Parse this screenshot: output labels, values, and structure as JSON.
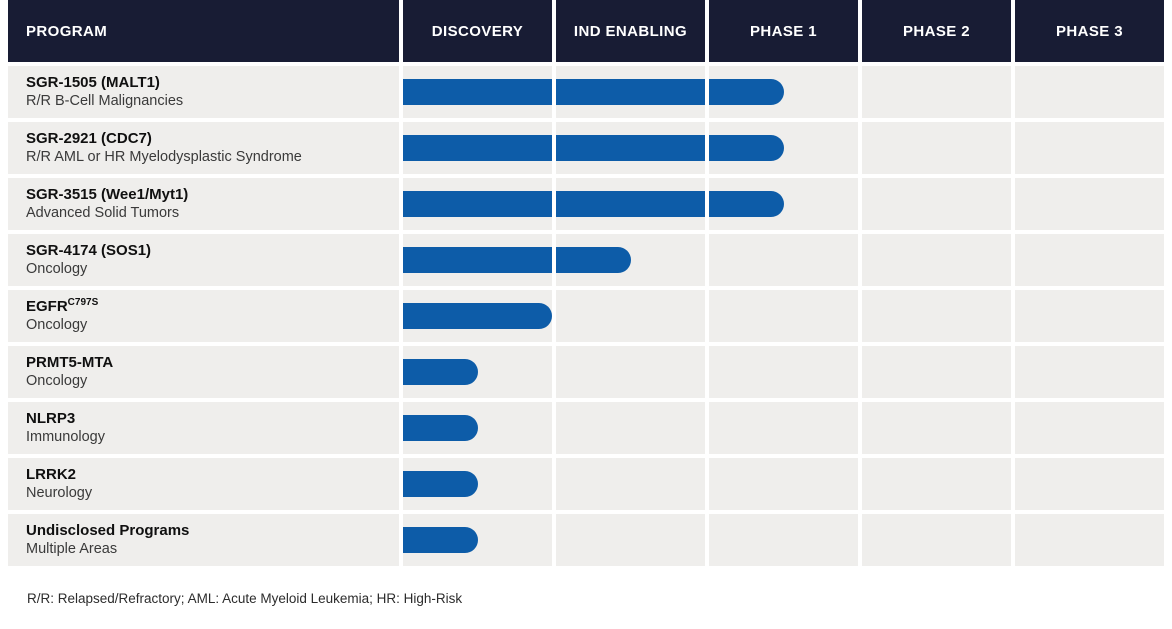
{
  "header": {
    "columns": [
      "PROGRAM",
      "DISCOVERY",
      "IND ENABLING",
      "PHASE 1",
      "PHASE 2",
      "PHASE 3"
    ]
  },
  "rows": [
    {
      "name": "SGR-1505 (MALT1)",
      "sup": "",
      "subtitle": "R/R B-Cell Malignancies",
      "progress": 2.5
    },
    {
      "name": "SGR-2921 (CDC7)",
      "sup": "",
      "subtitle": "R/R AML or HR Myelodysplastic Syndrome",
      "progress": 2.5
    },
    {
      "name": "SGR-3515 (Wee1/Myt1)",
      "sup": "",
      "subtitle": "Advanced Solid Tumors",
      "progress": 2.5
    },
    {
      "name": "SGR-4174 (SOS1)",
      "sup": "",
      "subtitle": "Oncology",
      "progress": 1.5
    },
    {
      "name": "EGFR",
      "sup": "C797S",
      "subtitle": "Oncology",
      "progress": 1.0
    },
    {
      "name": "PRMT5-MTA",
      "sup": "",
      "subtitle": "Oncology",
      "progress": 0.5
    },
    {
      "name": "NLRP3",
      "sup": "",
      "subtitle": "Immunology",
      "progress": 0.5
    },
    {
      "name": "LRRK2",
      "sup": "",
      "subtitle": "Neurology",
      "progress": 0.5
    },
    {
      "name": "Undisclosed Programs",
      "sup": "",
      "subtitle": "Multiple Areas",
      "progress": 0.5
    }
  ],
  "footnote": "R/R: Relapsed/Refractory; AML: Acute Myeloid Leukemia; HR: High-Risk",
  "colors": {
    "header_bg": "#181c34",
    "header_text": "#ffffff",
    "row_bg": "#efeeec",
    "bar": "#0d5ca8",
    "separator": "#ffffff"
  },
  "chart_data": {
    "type": "bar",
    "orientation": "horizontal",
    "title": "",
    "categories": [
      "SGR-1505 (MALT1)",
      "SGR-2921 (CDC7)",
      "SGR-3515 (Wee1/Myt1)",
      "SGR-4174 (SOS1)",
      "EGFRC797S",
      "PRMT5-MTA",
      "NLRP3",
      "LRRK2",
      "Undisclosed Programs"
    ],
    "category_sublabels": [
      "R/R B-Cell Malignancies",
      "R/R AML or HR Myelodysplastic Syndrome",
      "Advanced Solid Tumors",
      "Oncology",
      "Oncology",
      "Oncology",
      "Immunology",
      "Neurology",
      "Multiple Areas"
    ],
    "values": [
      2.5,
      2.5,
      2.5,
      1.5,
      1.0,
      0.5,
      0.5,
      0.5,
      0.5
    ],
    "value_unit": "stage columns spanned from start of Discovery (1 = one full stage)",
    "stages": [
      "Discovery",
      "IND Enabling",
      "Phase 1",
      "Phase 2",
      "Phase 3"
    ],
    "stage_reached": [
      "Phase 1",
      "Phase 1",
      "Phase 1",
      "IND Enabling",
      "Discovery",
      "Discovery",
      "Discovery",
      "Discovery",
      "Discovery"
    ],
    "xlim": [
      0,
      5
    ],
    "grid": true,
    "legend": false,
    "bar_color": "#0d5ca8"
  }
}
